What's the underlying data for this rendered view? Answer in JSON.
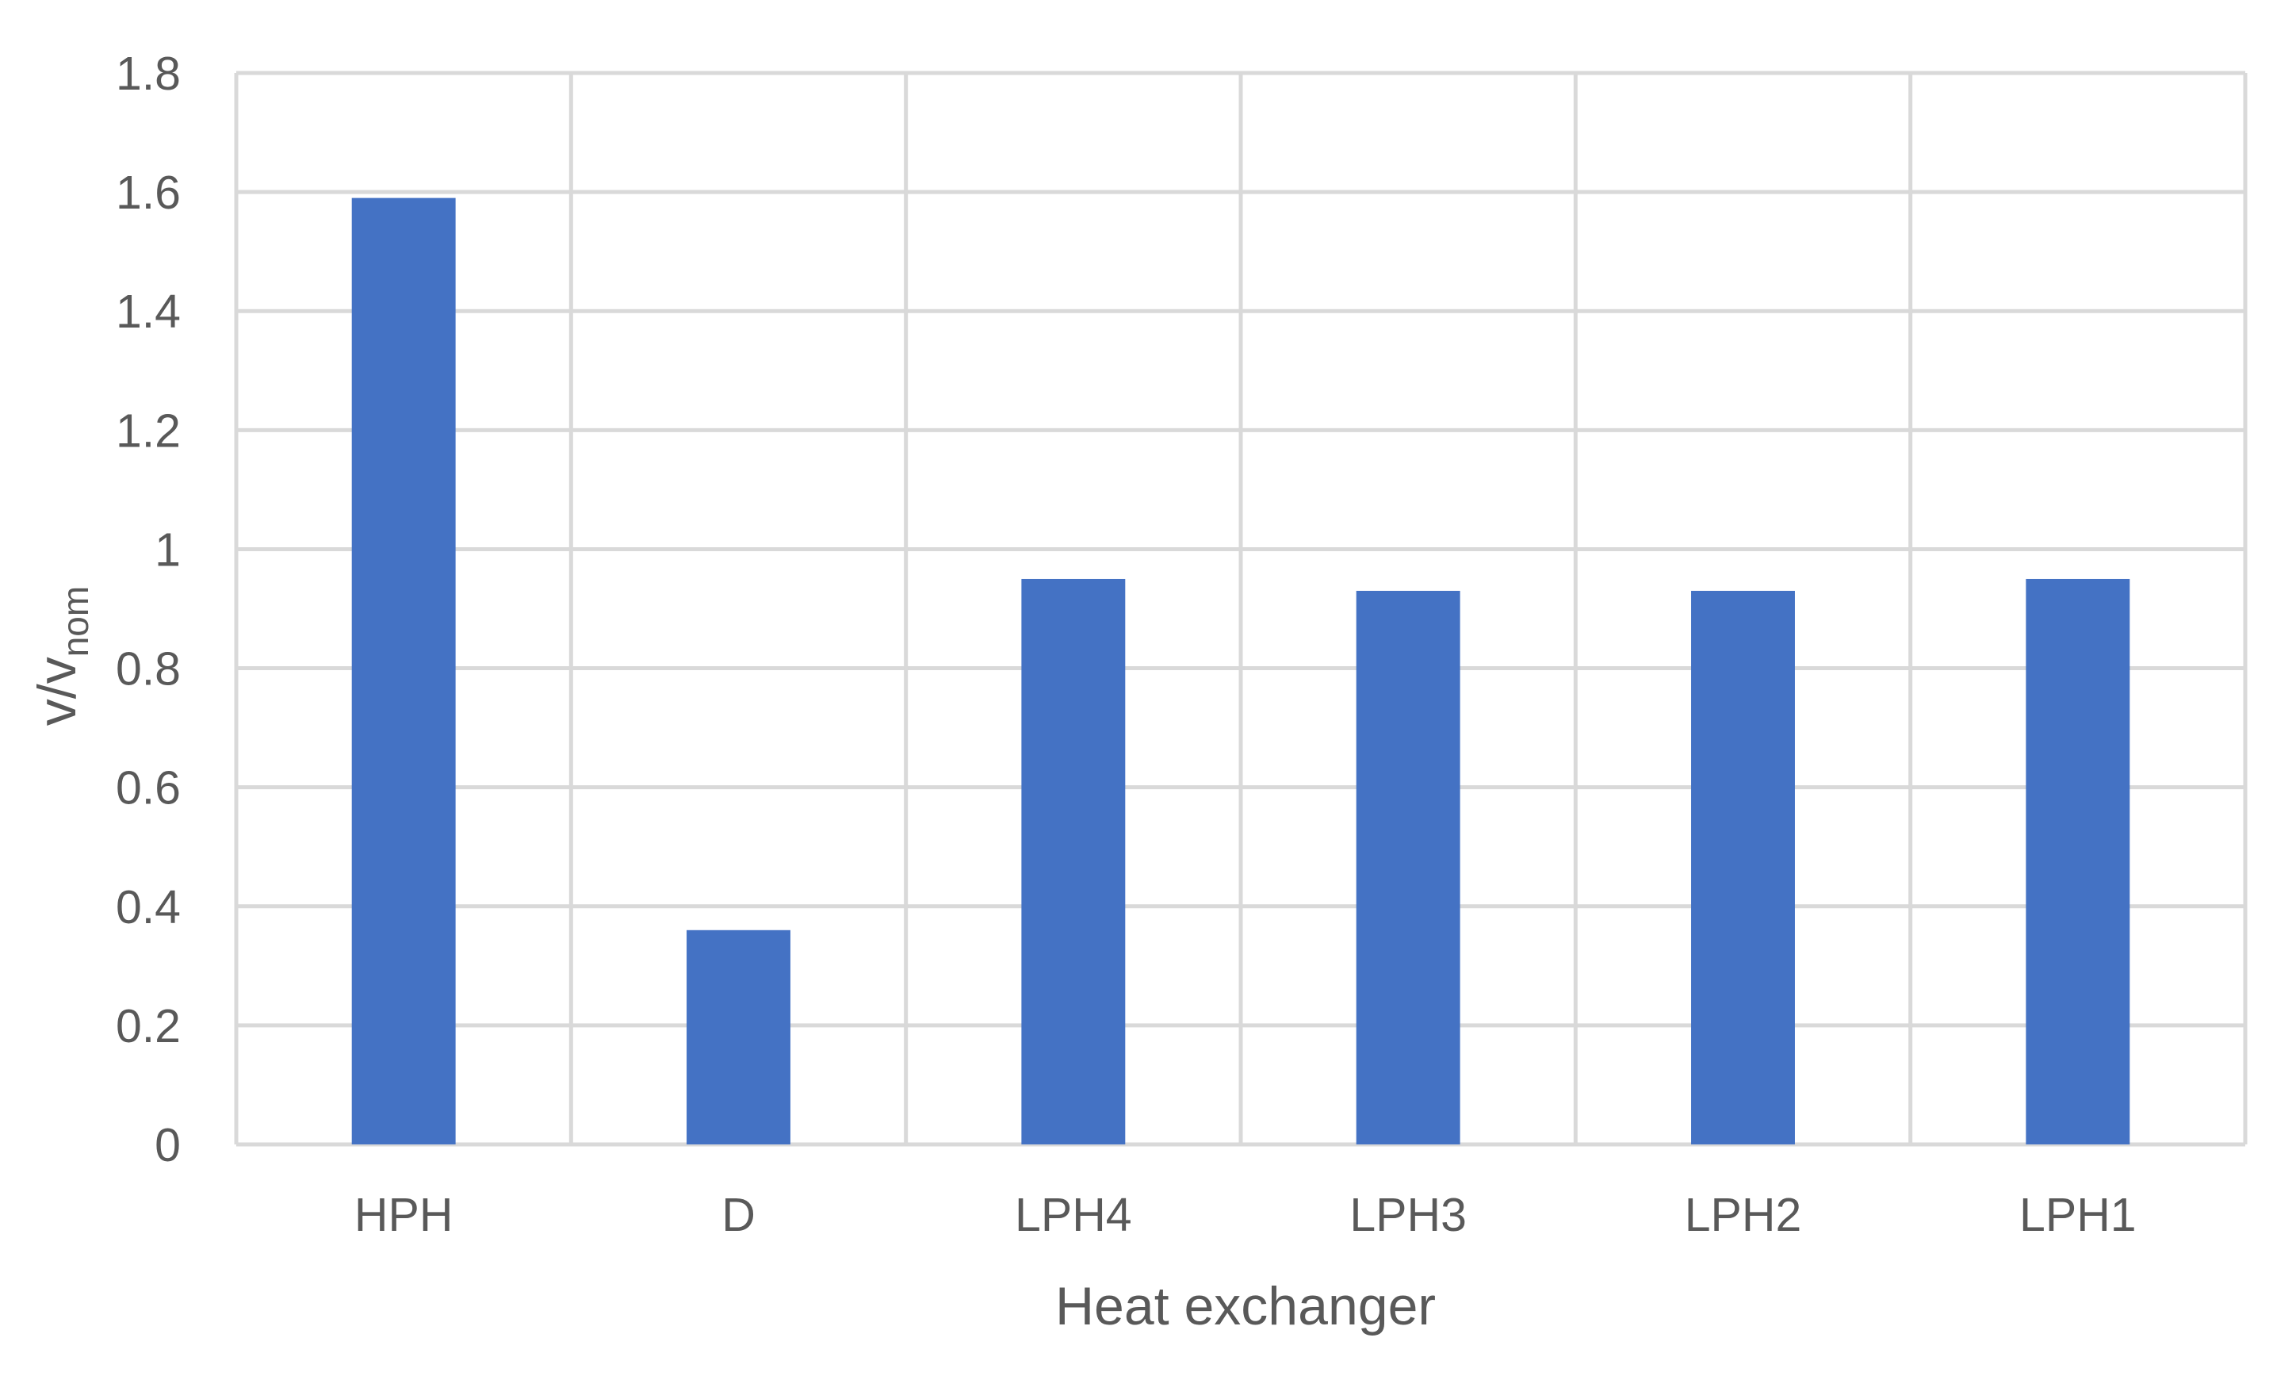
{
  "chart_data": {
    "type": "bar",
    "title": "",
    "xlabel": "Heat exchanger",
    "ylabel": {
      "main": "v/v",
      "subscript": "nom"
    },
    "categories": [
      "HPH",
      "D",
      "LPH4",
      "LPH3",
      "LPH2",
      "LPH1"
    ],
    "values": [
      1.59,
      0.36,
      0.95,
      0.93,
      0.93,
      0.95
    ],
    "ylim": [
      0,
      1.8
    ],
    "yticks": [
      "0",
      "0.2",
      "0.4",
      "0.6",
      "0.8",
      "1",
      "1.2",
      "1.4",
      "1.6",
      "1.8"
    ],
    "grid": true,
    "legend": "none",
    "bar_color": "#4472c4",
    "grid_color": "#d9d9d9",
    "text_color": "#595959"
  }
}
